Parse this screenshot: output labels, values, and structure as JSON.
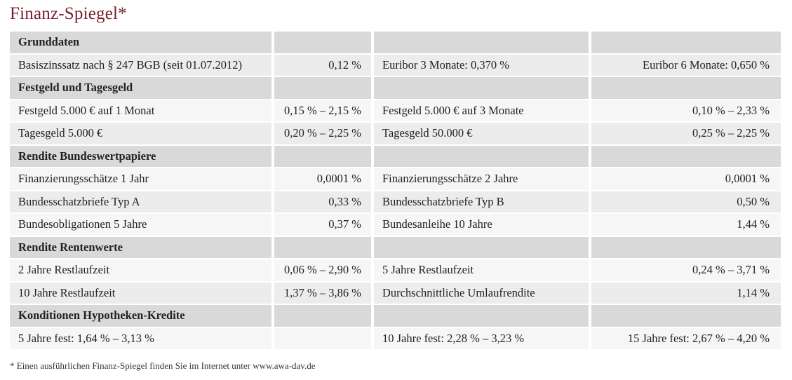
{
  "title": "Finanz-Spiegel",
  "title_mark": "*",
  "colors": {
    "title": "#7a1f2e",
    "header_bg": "#d9d9d9",
    "row_dark_bg": "#ececec",
    "row_light_bg": "#f6f6f6"
  },
  "sections": [
    {
      "heading": "Grunddaten",
      "rows": [
        [
          "Basiszinssatz nach § 247 BGB (seit 01.07.2012)",
          "0,12 %",
          "Euribor 3 Monate: 0,370 %",
          "Euribor 6 Monate: 0,650 %"
        ]
      ]
    },
    {
      "heading": "Festgeld und Tagesgeld",
      "rows": [
        [
          "Festgeld 5.000 € auf 1 Monat",
          "0,15 % – 2,15 %",
          "Festgeld 5.000 € auf 3 Monate",
          "0,10 % – 2,33 %"
        ],
        [
          "Tagesgeld 5.000 €",
          "0,20 % – 2,25 %",
          "Tagesgeld 50.000 €",
          "0,25 % – 2,25 %"
        ]
      ]
    },
    {
      "heading": "Rendite Bundeswertpapiere",
      "rows": [
        [
          "Finanzierungsschätze 1 Jahr",
          "0,0001 %",
          "Finanzierungsschätze 2 Jahre",
          "0,0001 %"
        ],
        [
          "Bundesschatzbriefe Typ A",
          "0,33 %",
          "Bundesschatzbriefe Typ B",
          "0,50 %"
        ],
        [
          "Bundesobligationen 5 Jahre",
          "0,37 %",
          "Bundesanleihe 10 Jahre",
          "1,44 %"
        ]
      ]
    },
    {
      "heading": "Rendite Rentenwerte",
      "rows": [
        [
          "2 Jahre Restlaufzeit",
          "0,06 % – 2,90 %",
          "5 Jahre Restlaufzeit",
          "0,24 % – 3,71 %"
        ],
        [
          "10 Jahre Restlaufzeit",
          "1,37 % – 3,86 %",
          "Durchschnittliche Umlaufrendite",
          "1,14 %"
        ]
      ]
    },
    {
      "heading": "Konditionen Hypotheken-Kredite",
      "rows": [
        [
          "5 Jahre fest: 1,64 % – 3,13 %",
          "",
          "10 Jahre fest: 2,28 % – 3,23 %",
          "15 Jahre fest: 2,67 % – 4,20 %"
        ]
      ]
    }
  ],
  "footnote": "* Einen ausführlichen Finanz-Spiegel finden Sie im Internet unter www.awa-dav.de"
}
